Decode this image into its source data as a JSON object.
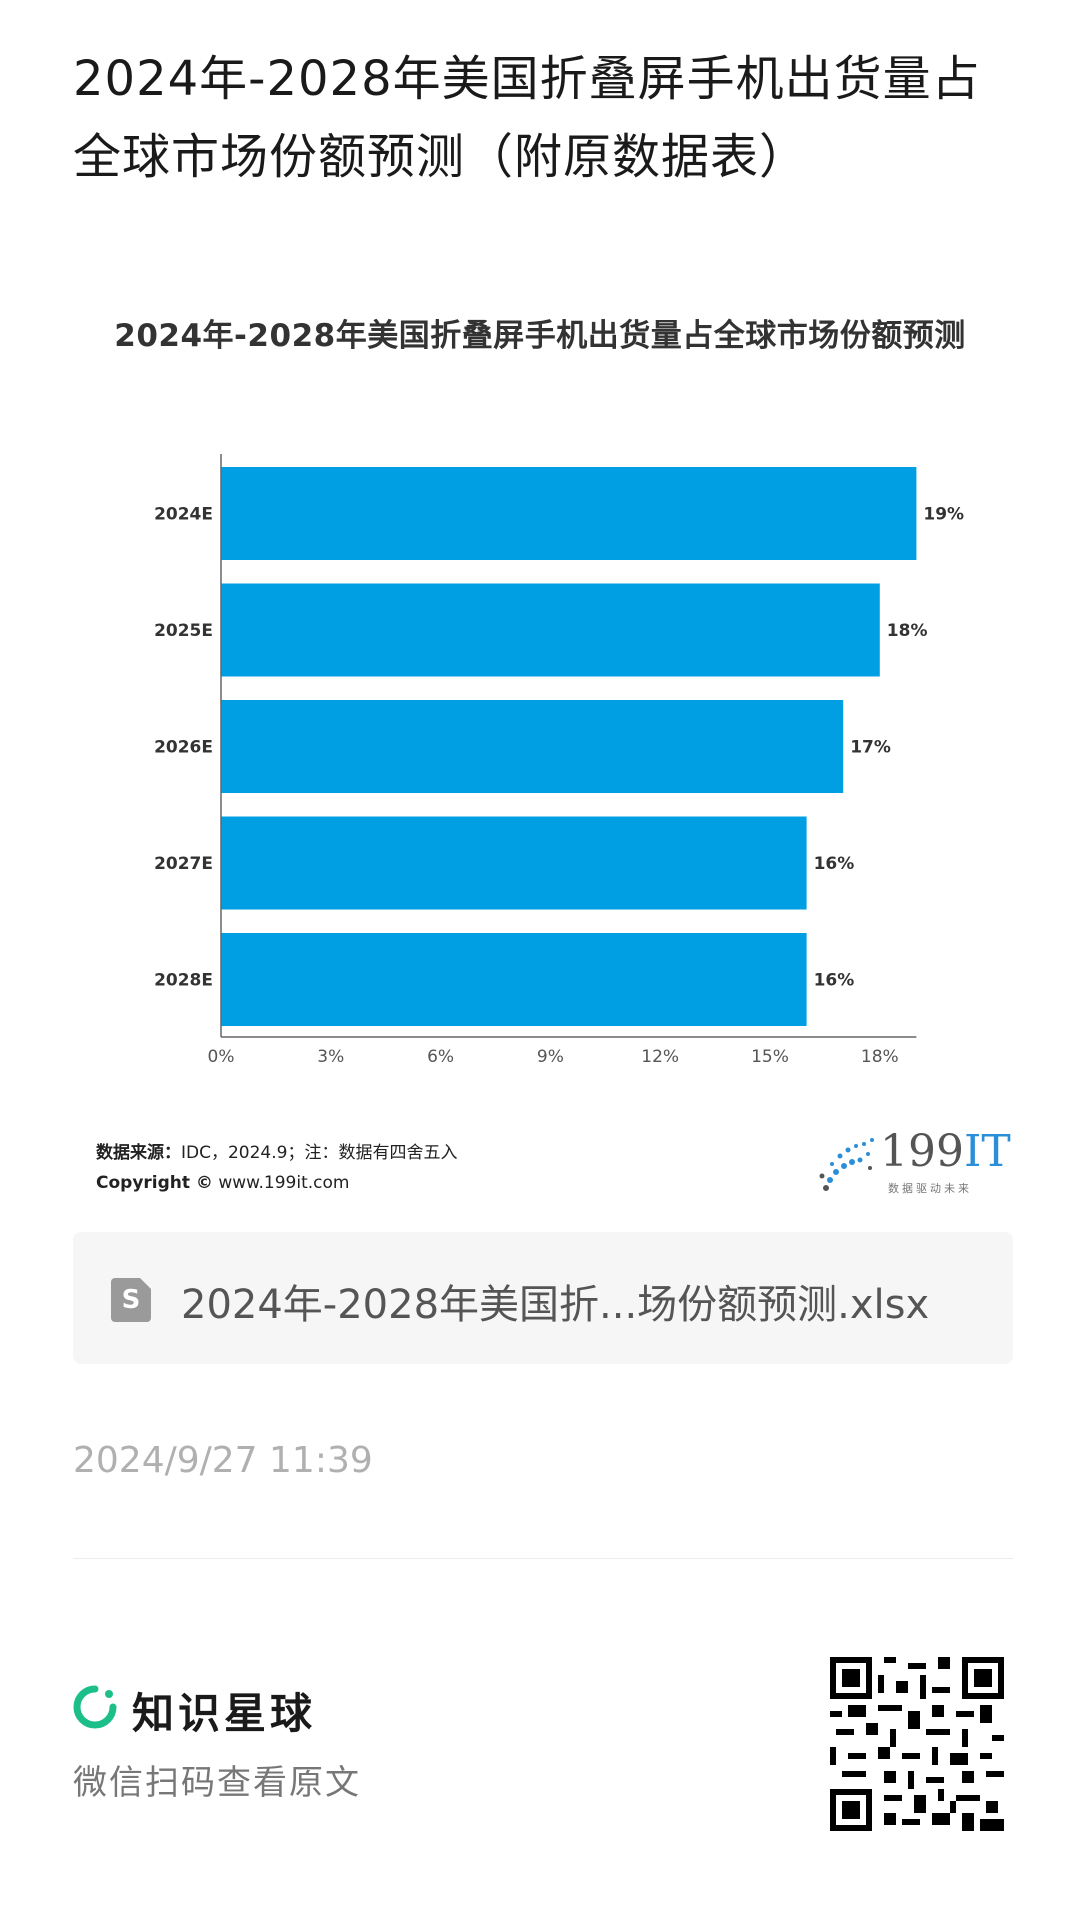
{
  "article": {
    "title": "2024年-2028年美国折叠屏手机出货量占全球市场份额预测（附原数据表）",
    "timestamp": "2024/9/27 11:39"
  },
  "chart_data": {
    "type": "bar",
    "orientation": "horizontal",
    "title": "2024年-2028年美国折叠屏手机出货量占全球市场份额预测",
    "categories": [
      "2024E",
      "2025E",
      "2026E",
      "2027E",
      "2028E"
    ],
    "values": [
      19,
      18,
      17,
      16,
      16
    ],
    "value_labels": [
      "19%",
      "18%",
      "17%",
      "16%",
      "16%"
    ],
    "x_ticks": [
      "0%",
      "3%",
      "6%",
      "9%",
      "12%",
      "15%",
      "18%"
    ],
    "xlim": [
      0,
      19
    ],
    "bar_color": "#009fe3",
    "grid": false
  },
  "source": {
    "label": "数据来源：",
    "text": "IDC，2024.9；注：数据有四舍五入",
    "copyright_label": "Copyright ©",
    "copyright_url": "www.199it.com"
  },
  "brand": {
    "name_num": "199",
    "name_it": "IT",
    "tagline": "数据驱动未来"
  },
  "file": {
    "icon_letter": "S",
    "name": "2024年-2028年美国折...场份额预测.xlsx"
  },
  "footer": {
    "planet_name": "知识星球",
    "scan_text": "微信扫码查看原文",
    "accent": "#1cbf8a"
  }
}
